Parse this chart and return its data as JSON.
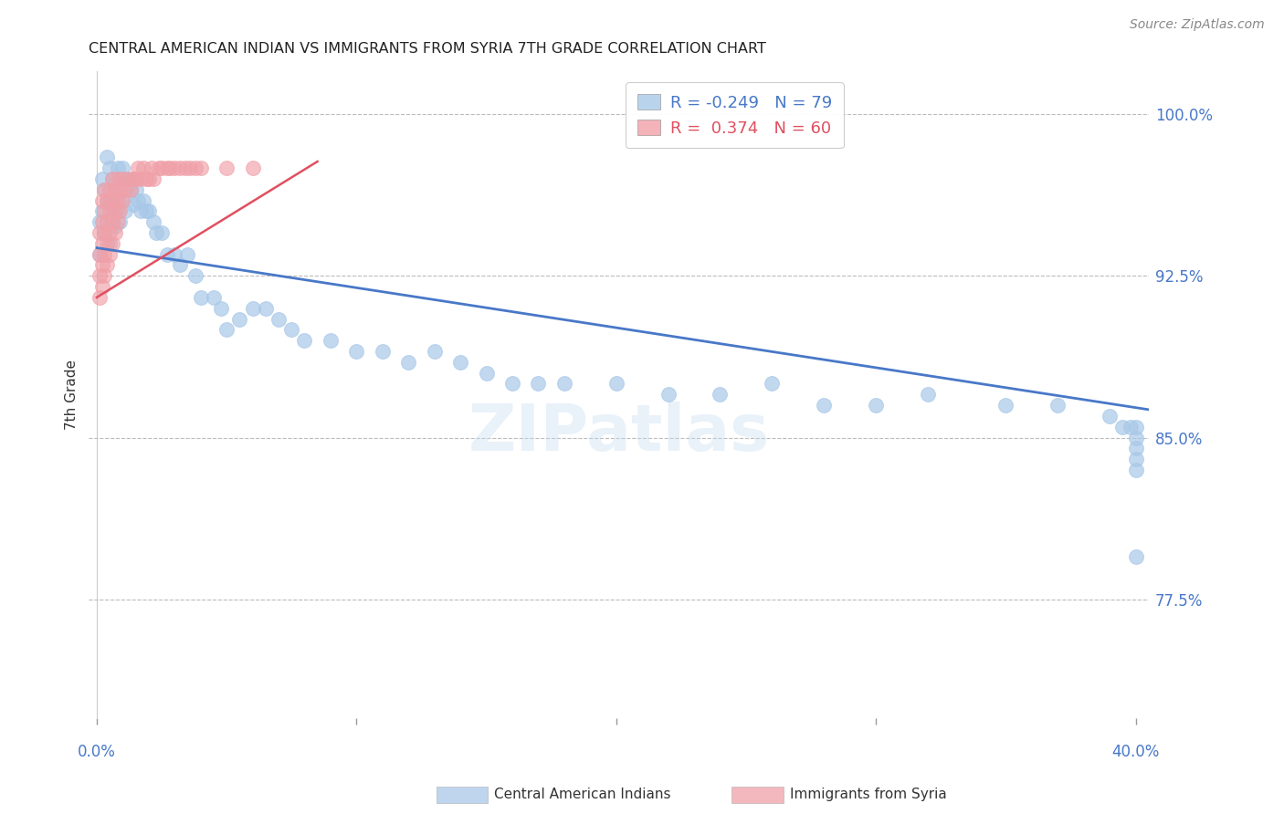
{
  "title": "CENTRAL AMERICAN INDIAN VS IMMIGRANTS FROM SYRIA 7TH GRADE CORRELATION CHART",
  "source": "Source: ZipAtlas.com",
  "ylabel": "7th Grade",
  "ytick_vals": [
    77.5,
    85.0,
    92.5,
    100.0
  ],
  "ytick_labels": [
    "77.5%",
    "85.0%",
    "92.5%",
    "100.0%"
  ],
  "ylim": [
    72.0,
    102.0
  ],
  "xlim": [
    -0.003,
    0.405
  ],
  "legend_blue_r": "-0.249",
  "legend_blue_n": "79",
  "legend_pink_r": "0.374",
  "legend_pink_n": "60",
  "legend_label_blue": "Central American Indians",
  "legend_label_pink": "Immigrants from Syria",
  "blue_color": "#A8C8E8",
  "pink_color": "#F0A0A8",
  "blue_line_color": "#4878C8",
  "pink_line_color": "#E05060",
  "watermark": "ZIPatlas",
  "blue_scatter_x": [
    0.001,
    0.001,
    0.002,
    0.002,
    0.003,
    0.003,
    0.004,
    0.004,
    0.005,
    0.005,
    0.005,
    0.006,
    0.006,
    0.007,
    0.007,
    0.008,
    0.008,
    0.009,
    0.009,
    0.01,
    0.01,
    0.011,
    0.011,
    0.012,
    0.013,
    0.014,
    0.014,
    0.015,
    0.016,
    0.017,
    0.018,
    0.019,
    0.02,
    0.022,
    0.023,
    0.025,
    0.027,
    0.03,
    0.032,
    0.035,
    0.038,
    0.04,
    0.045,
    0.048,
    0.05,
    0.055,
    0.06,
    0.065,
    0.07,
    0.075,
    0.08,
    0.09,
    0.1,
    0.11,
    0.12,
    0.13,
    0.14,
    0.15,
    0.16,
    0.17,
    0.18,
    0.2,
    0.22,
    0.24,
    0.26,
    0.28,
    0.3,
    0.32,
    0.35,
    0.37,
    0.39,
    0.395,
    0.398,
    0.4,
    0.4,
    0.4,
    0.4,
    0.4,
    0.4
  ],
  "blue_scatter_y": [
    95.0,
    93.5,
    97.0,
    95.5,
    96.5,
    94.5,
    98.0,
    96.0,
    97.5,
    95.8,
    94.0,
    97.0,
    95.2,
    96.5,
    94.8,
    97.5,
    95.5,
    97.0,
    95.0,
    97.5,
    96.0,
    97.0,
    95.5,
    97.0,
    96.5,
    97.0,
    95.8,
    96.5,
    96.0,
    95.5,
    96.0,
    95.5,
    95.5,
    95.0,
    94.5,
    94.5,
    93.5,
    93.5,
    93.0,
    93.5,
    92.5,
    91.5,
    91.5,
    91.0,
    90.0,
    90.5,
    91.0,
    91.0,
    90.5,
    90.0,
    89.5,
    89.5,
    89.0,
    89.0,
    88.5,
    89.0,
    88.5,
    88.0,
    87.5,
    87.5,
    87.5,
    87.5,
    87.0,
    87.0,
    87.5,
    86.5,
    86.5,
    87.0,
    86.5,
    86.5,
    86.0,
    85.5,
    85.5,
    85.5,
    85.0,
    84.5,
    84.0,
    83.5,
    79.5
  ],
  "pink_scatter_x": [
    0.001,
    0.001,
    0.001,
    0.001,
    0.002,
    0.002,
    0.002,
    0.002,
    0.002,
    0.003,
    0.003,
    0.003,
    0.003,
    0.003,
    0.004,
    0.004,
    0.004,
    0.004,
    0.005,
    0.005,
    0.005,
    0.005,
    0.006,
    0.006,
    0.006,
    0.006,
    0.007,
    0.007,
    0.007,
    0.008,
    0.008,
    0.008,
    0.009,
    0.009,
    0.01,
    0.01,
    0.011,
    0.012,
    0.013,
    0.014,
    0.015,
    0.016,
    0.017,
    0.018,
    0.019,
    0.02,
    0.021,
    0.022,
    0.024,
    0.025,
    0.027,
    0.028,
    0.03,
    0.032,
    0.034,
    0.036,
    0.038,
    0.04,
    0.05,
    0.06
  ],
  "pink_scatter_y": [
    91.5,
    92.5,
    93.5,
    94.5,
    92.0,
    93.0,
    94.0,
    95.0,
    96.0,
    92.5,
    93.5,
    94.5,
    95.5,
    96.5,
    93.0,
    94.0,
    95.0,
    96.0,
    93.5,
    94.5,
    95.5,
    96.5,
    94.0,
    95.0,
    96.0,
    97.0,
    94.5,
    95.5,
    96.5,
    95.0,
    96.0,
    97.0,
    95.5,
    96.5,
    96.0,
    97.0,
    96.5,
    97.0,
    96.5,
    97.0,
    97.0,
    97.5,
    97.0,
    97.5,
    97.0,
    97.0,
    97.5,
    97.0,
    97.5,
    97.5,
    97.5,
    97.5,
    97.5,
    97.5,
    97.5,
    97.5,
    97.5,
    97.5,
    97.5,
    97.5
  ],
  "blue_trendline_x": [
    0.0,
    0.405
  ],
  "blue_trendline_y": [
    93.8,
    86.3
  ],
  "pink_trendline_x": [
    0.0,
    0.085
  ],
  "pink_trendline_y": [
    91.5,
    97.8
  ],
  "bg_color": "#FFFFFF",
  "grid_color": "#BBBBBB",
  "title_color": "#222222",
  "axis_label_color": "#333333",
  "tick_label_color": "#4878C8",
  "source_color": "#888888"
}
